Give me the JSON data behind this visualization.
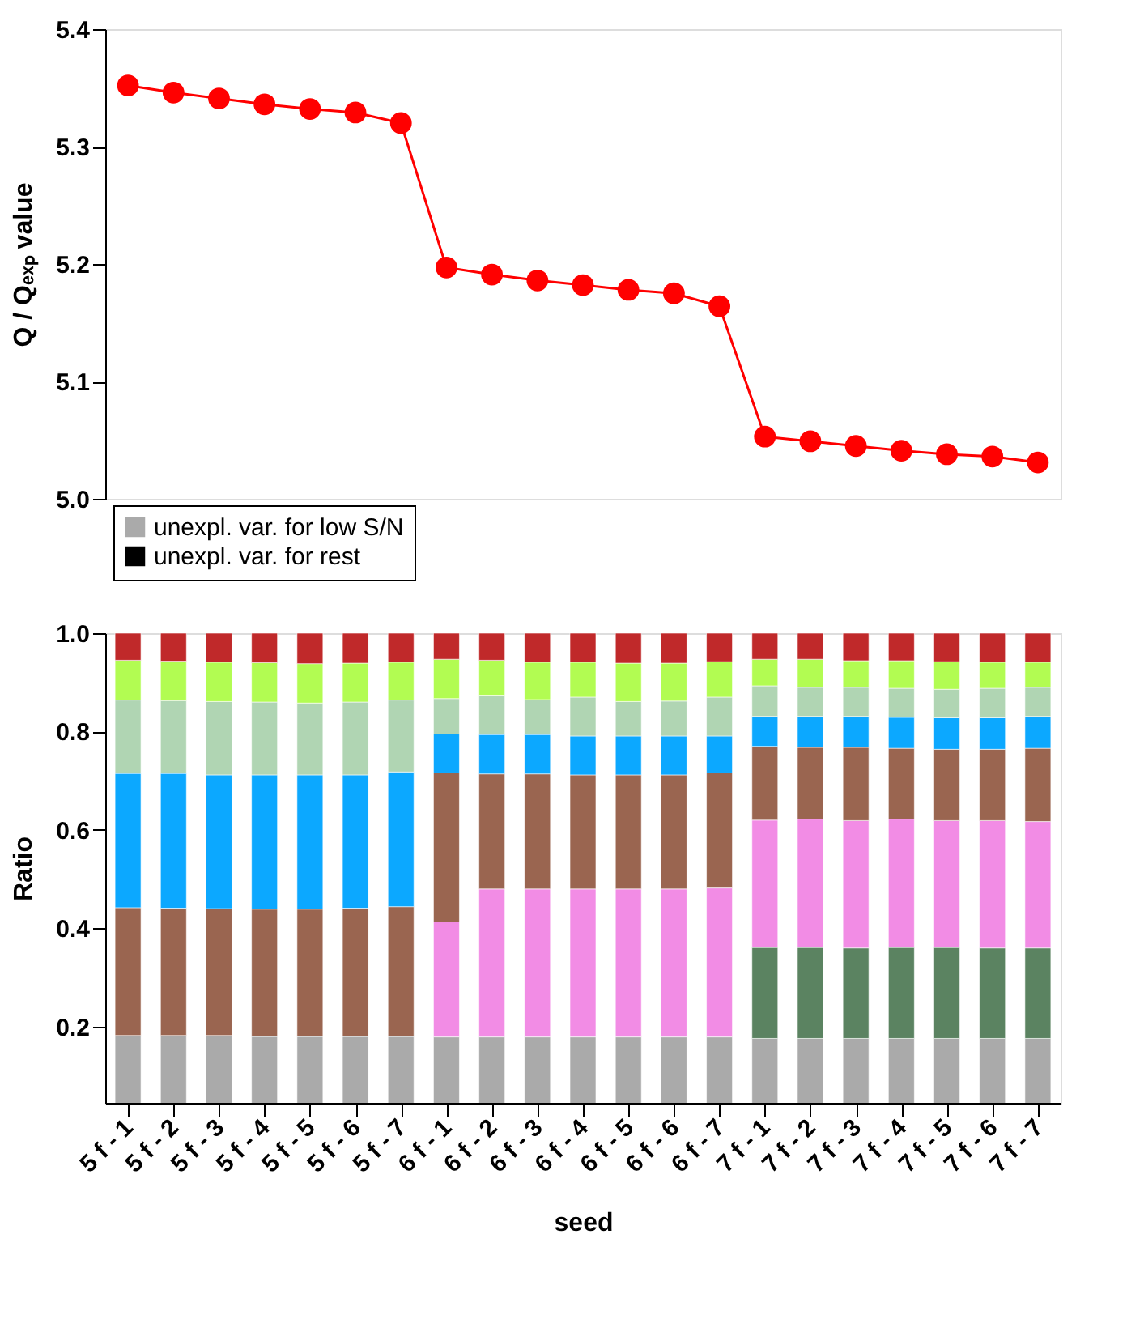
{
  "chart_data": [
    {
      "type": "line",
      "ylabel": "Q / Qₑₓₚ value",
      "categories": [
        null,
        null,
        null,
        null,
        null,
        null,
        null,
        null,
        null,
        null,
        null,
        null,
        null,
        null,
        null,
        null,
        null,
        null,
        null,
        null,
        null
      ],
      "series": [
        {
          "color": "#ff0000",
          "values": [
            5.352,
            5.346,
            5.341,
            5.336,
            5.332,
            5.329,
            5.32,
            5.197,
            5.191,
            5.186,
            5.182,
            5.178,
            5.175,
            5.164,
            5.053,
            5.049,
            5.045,
            5.041,
            5.038,
            5.036,
            5.031
          ]
        }
      ],
      "ylim": [
        5.0,
        5.4
      ],
      "yticks": [
        {
          "value": 5.0,
          "label": "5.0"
        },
        5.1,
        5.2,
        5.3,
        5.4
      ],
      "marker": "circle",
      "line_style": "solid",
      "grid": false,
      "tick_labels": "y"
    },
    {
      "type": "bar",
      "stacked": true,
      "xlabel": "seed",
      "ylabel": "Ratio",
      "categories": [
        "5 f - 1",
        "5 f - 2",
        "5 f - 3",
        "5 f - 4",
        "5 f - 5",
        "5 f - 6",
        "5 f - 7",
        "6 f - 1",
        "6 f - 2",
        "6 f - 3",
        "6 f - 4",
        "6 f - 5",
        "6 f - 6",
        "6 f - 7",
        "7 f - 1",
        "7 f - 2",
        "7 f - 3",
        "7 f - 4",
        "7 f - 5",
        "7 f - 6",
        "7 f - 7"
      ],
      "series": [
        {
          "name": "unexpl. var. for low S/N",
          "color": "#aaaaaa",
          "values": [
            0.182,
            0.182,
            0.182,
            0.18,
            0.18,
            0.18,
            0.18,
            0.179,
            0.179,
            0.179,
            0.179,
            0.179,
            0.179,
            0.179,
            0.176,
            0.176,
            0.176,
            0.176,
            0.176,
            0.176,
            0.176
          ]
        },
        {
          "color": "#5b8361",
          "values": [
            null,
            null,
            null,
            null,
            null,
            null,
            null,
            null,
            null,
            null,
            null,
            null,
            null,
            null,
            0.185,
            0.185,
            0.184,
            0.185,
            0.185,
            0.184,
            0.184
          ]
        },
        {
          "color": "#f28ce5",
          "values": [
            null,
            null,
            null,
            null,
            null,
            null,
            null,
            0.234,
            0.301,
            0.301,
            0.301,
            0.301,
            0.301,
            0.303,
            0.259,
            0.261,
            0.259,
            0.261,
            0.258,
            0.259,
            0.257
          ]
        },
        {
          "color": "#9a6550",
          "values": [
            0.26,
            0.259,
            0.258,
            0.259,
            0.259,
            0.261,
            0.264,
            0.303,
            0.234,
            0.234,
            0.232,
            0.232,
            0.232,
            0.234,
            0.15,
            0.146,
            0.149,
            0.144,
            0.145,
            0.145,
            0.149
          ]
        },
        {
          "color": "#0ca8ff",
          "values": [
            0.273,
            0.274,
            0.272,
            0.273,
            0.273,
            0.271,
            0.274,
            0.079,
            0.08,
            0.08,
            0.079,
            0.079,
            0.079,
            0.075,
            0.061,
            0.063,
            0.063,
            0.063,
            0.064,
            0.064,
            0.065
          ]
        },
        {
          "color": "#b0d5b3",
          "values": [
            0.149,
            0.148,
            0.149,
            0.148,
            0.146,
            0.148,
            0.146,
            0.072,
            0.08,
            0.071,
            0.079,
            0.07,
            0.071,
            0.079,
            0.062,
            0.059,
            0.059,
            0.059,
            0.058,
            0.06,
            0.059
          ]
        },
        {
          "color": "#b2fc52",
          "values": [
            0.081,
            0.08,
            0.08,
            0.08,
            0.08,
            0.079,
            0.077,
            0.08,
            0.071,
            0.076,
            0.071,
            0.078,
            0.077,
            0.072,
            0.054,
            0.057,
            0.054,
            0.056,
            0.056,
            0.053,
            0.051
          ]
        },
        {
          "color": "#c0292a",
          "values": [
            0.055,
            0.057,
            0.059,
            0.06,
            0.062,
            0.061,
            0.059,
            0.053,
            0.055,
            0.059,
            0.059,
            0.061,
            0.061,
            0.058,
            0.053,
            0.053,
            0.056,
            0.056,
            0.058,
            0.059,
            0.059
          ]
        },
        {
          "name": "unexpl. var. for rest",
          "color": "#000000",
          "values": [
            null,
            null,
            null,
            null,
            null,
            null,
            null,
            null,
            null,
            null,
            null,
            null,
            null,
            null,
            null,
            null,
            null,
            null,
            null,
            null,
            null
          ]
        }
      ],
      "ylim": [
        0.045,
        1.0
      ],
      "yticks": [
        0.2,
        0.4,
        0.6,
        0.8,
        {
          "value": 1.0,
          "label": "1.0"
        }
      ],
      "grid": false,
      "legend": "top left"
    }
  ]
}
